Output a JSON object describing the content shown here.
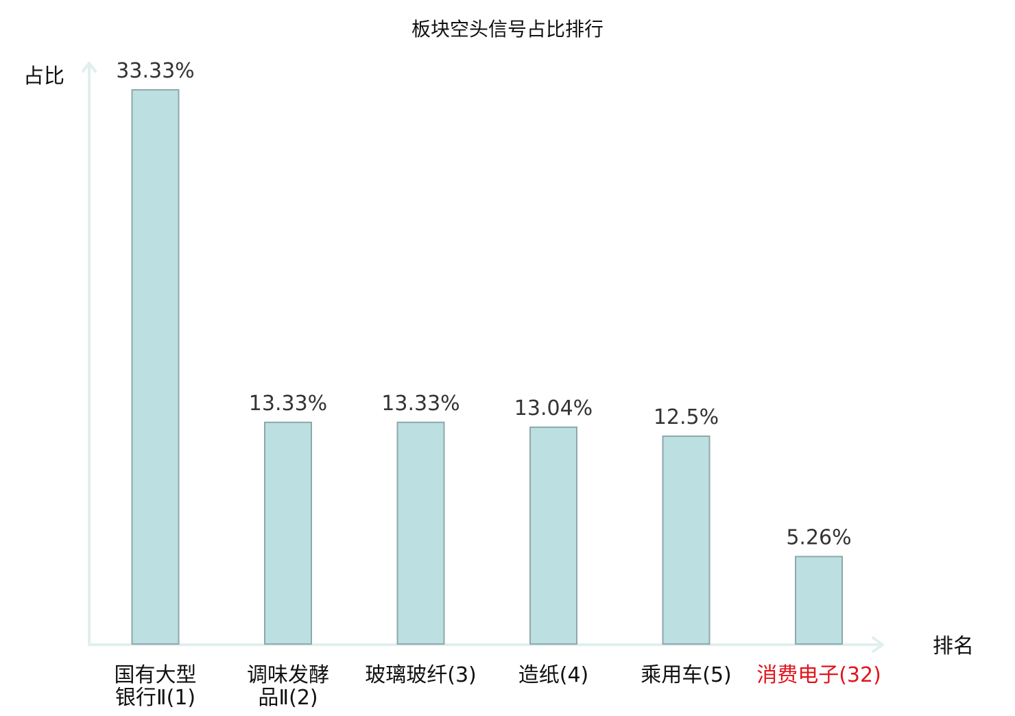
{
  "chart_data": {
    "type": "bar",
    "title": "板块空头信号占比排行",
    "ylabel": "占比",
    "xlabel": "排名",
    "categories": [
      [
        "国有大型",
        "银行Ⅱ(1)"
      ],
      [
        "调味发酵",
        "品Ⅱ(2)"
      ],
      [
        "玻璃玻纤(3)"
      ],
      [
        "造纸(4)"
      ],
      [
        "乘用车(5)"
      ],
      [
        "消费电子(32)"
      ]
    ],
    "values": [
      33.33,
      13.33,
      13.33,
      13.04,
      12.5,
      5.26
    ],
    "value_labels": [
      "33.33%",
      "13.33%",
      "13.33%",
      "13.04%",
      "12.5%",
      "5.26%"
    ],
    "highlight_index": 5,
    "ylim": [
      0,
      33.33
    ],
    "grid": false,
    "colors": {
      "bar_fill": "#bcdfe2",
      "bar_stroke": "#8fa7aa",
      "axis": "#dff0ee",
      "highlight_label": "#e0141c"
    }
  }
}
